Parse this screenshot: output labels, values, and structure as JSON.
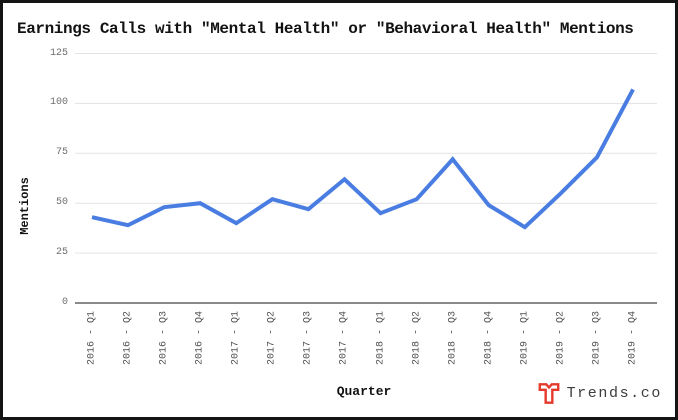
{
  "window": {
    "background": "#ffffff",
    "border_color": "#141414"
  },
  "title": "Earnings Calls with \"Mental Health\" or \"Behavioral Health\" Mentions",
  "chart_data": {
    "type": "line",
    "title": "Earnings Calls with \"Mental Health\" or \"Behavioral Health\" Mentions",
    "xlabel": "Quarter",
    "ylabel": "Mentions",
    "categories": [
      "2016 - Q1",
      "2016 - Q2",
      "2016 - Q3",
      "2016 - Q4",
      "2017 - Q1",
      "2017 - Q2",
      "2017 - Q3",
      "2017 - Q4",
      "2018 - Q1",
      "2018 - Q2",
      "2018 - Q3",
      "2018 - Q4",
      "2019 - Q1",
      "2019 - Q2",
      "2019 - Q3",
      "2019 - Q4"
    ],
    "series": [
      {
        "name": "Mentions",
        "values": [
          43,
          39,
          48,
          50,
          40,
          52,
          47,
          62,
          45,
          52,
          72,
          49,
          38,
          55,
          73,
          107
        ]
      }
    ],
    "ylim": [
      0,
      125
    ],
    "yticks": [
      0,
      25,
      50,
      75,
      100,
      125
    ],
    "grid": true,
    "legend": "none",
    "line_color": "#4a7de2",
    "gridline_color": "#e3e3e3",
    "axis_line_color": "#8a8a8a",
    "y_tick_color": "#6e6e6e",
    "x_tick_color": "#4f4f4f"
  },
  "footer": {
    "brand": "Trends.co",
    "logo_icon": "trends-t-logo",
    "logo_color": "#e5392c",
    "text_color": "#3d3d3d"
  }
}
